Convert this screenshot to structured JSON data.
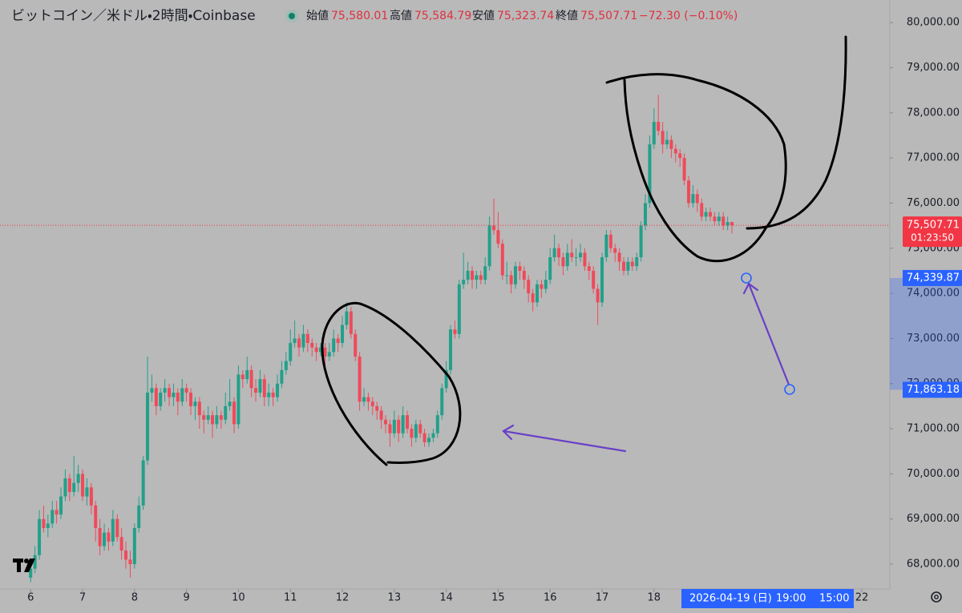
{
  "chart_data": {
    "type": "candlestick",
    "title": "ビットコイン／米ドル・2時間・Coinbase",
    "ohlc_labels": [
      "始値",
      "高値",
      "安値",
      "終値"
    ],
    "ohlc_values": [
      "75,580.01",
      "75,584.79",
      "75,323.74",
      "75,507.71"
    ],
    "change": "−72.30 (−0.10%)",
    "up_color": "#22a08a",
    "down_color": "#ef4a5a",
    "grid": false,
    "xlim": [
      5.41,
      22.54
    ],
    "xticks": [
      6,
      7,
      8,
      9,
      10,
      11,
      12,
      13,
      14,
      15,
      16,
      17,
      18,
      22
    ],
    "ylim": [
      67450,
      80500
    ],
    "yticks": [
      {
        "value": 68000,
        "label": "68,000.00"
      },
      {
        "value": 69000,
        "label": "69,000.00"
      },
      {
        "value": 70000,
        "label": "70,000.00"
      },
      {
        "value": 71000,
        "label": "71,000.00"
      },
      {
        "value": 72000,
        "label": "72,000.00"
      },
      {
        "value": 73000,
        "label": "73,000.00"
      },
      {
        "value": 74000,
        "label": "74,000.00"
      },
      {
        "value": 75000,
        "label": "75,000.00"
      },
      {
        "value": 76000,
        "label": "76,000.00"
      },
      {
        "value": 77000,
        "label": "77,000.00"
      },
      {
        "value": 78000,
        "label": "78,000.00"
      },
      {
        "value": 79000,
        "label": "79,000.00"
      },
      {
        "value": 80000,
        "label": "80,000.00"
      }
    ],
    "last_price": {
      "value": 75507.71,
      "label": "75,507.71",
      "countdown": "01:23:50",
      "color": "#f23645"
    },
    "range_markers": [
      {
        "value": 74339.87,
        "label": "74,339.87"
      },
      {
        "value": 71863.18,
        "label": "71,863.18"
      }
    ],
    "range_color": "#2962ff",
    "x_axis_highlight": {
      "date": "2026-04-19 (日)",
      "times": [
        "19:00",
        "15:00"
      ]
    },
    "x": [
      6,
      6.083,
      6.167,
      6.25,
      6.333,
      6.417,
      6.5,
      6.583,
      6.667,
      6.75,
      6.833,
      6.917,
      7,
      7.083,
      7.167,
      7.25,
      7.333,
      7.417,
      7.5,
      7.583,
      7.667,
      7.75,
      7.833,
      7.917,
      8,
      8.083,
      8.167,
      8.25,
      8.333,
      8.417,
      8.5,
      8.583,
      8.667,
      8.75,
      8.833,
      8.917,
      9,
      9.083,
      9.167,
      9.25,
      9.333,
      9.417,
      9.5,
      9.583,
      9.667,
      9.75,
      9.833,
      9.917,
      10,
      10.083,
      10.167,
      10.25,
      10.333,
      10.417,
      10.5,
      10.583,
      10.667,
      10.75,
      10.833,
      10.917,
      11,
      11.083,
      11.167,
      11.25,
      11.333,
      11.417,
      11.5,
      11.583,
      11.667,
      11.75,
      11.833,
      11.917,
      12,
      12.083,
      12.167,
      12.25,
      12.333,
      12.417,
      12.5,
      12.583,
      12.667,
      12.75,
      12.833,
      12.917,
      13,
      13.083,
      13.167,
      13.25,
      13.333,
      13.417,
      13.5,
      13.583,
      13.667,
      13.75,
      13.833,
      13.917,
      14,
      14.083,
      14.167,
      14.25,
      14.333,
      14.417,
      14.5,
      14.583,
      14.667,
      14.75,
      14.833,
      14.917,
      15,
      15.083,
      15.167,
      15.25,
      15.333,
      15.417,
      15.5,
      15.583,
      15.667,
      15.75,
      15.833,
      15.917,
      16,
      16.083,
      16.167,
      16.25,
      16.333,
      16.417,
      16.5,
      16.583,
      16.667,
      16.75,
      16.833,
      16.917,
      17,
      17.083,
      17.167,
      17.25,
      17.333,
      17.417,
      17.5,
      17.583,
      17.667,
      17.75,
      17.833,
      17.917,
      18,
      18.083,
      18.167,
      18.25,
      18.333,
      18.417,
      18.5,
      18.583,
      18.667,
      18.75,
      18.833,
      18.917,
      19,
      19.083,
      19.167,
      19.25,
      19.333,
      19.417,
      19.5
    ],
    "ohlc": [
      [
        67700,
        68100,
        67600,
        67900
      ],
      [
        67900,
        68400,
        67800,
        68200
      ],
      [
        68200,
        69200,
        68100,
        69000
      ],
      [
        69000,
        69300,
        68700,
        68800
      ],
      [
        68800,
        69100,
        68600,
        68900
      ],
      [
        68900,
        69400,
        68800,
        69200
      ],
      [
        69200,
        69400,
        68900,
        69100
      ],
      [
        69100,
        69700,
        69000,
        69500
      ],
      [
        69500,
        70100,
        69400,
        69900
      ],
      [
        69900,
        70000,
        69400,
        69600
      ],
      [
        69600,
        70400,
        69500,
        69800
      ],
      [
        69800,
        70200,
        69600,
        70000
      ],
      [
        70000,
        70100,
        69400,
        69500
      ],
      [
        69500,
        69900,
        69300,
        69700
      ],
      [
        69700,
        69800,
        69100,
        69300
      ],
      [
        69300,
        69400,
        68500,
        68800
      ],
      [
        68800,
        69000,
        68200,
        68400
      ],
      [
        68400,
        68900,
        68300,
        68700
      ],
      [
        68700,
        68800,
        68300,
        68500
      ],
      [
        68500,
        69200,
        68400,
        69000
      ],
      [
        69000,
        69100,
        68500,
        68600
      ],
      [
        68600,
        68800,
        68100,
        68300
      ],
      [
        68300,
        68500,
        67900,
        68100
      ],
      [
        68100,
        68300,
        67700,
        68000
      ],
      [
        68000,
        68900,
        67900,
        68800
      ],
      [
        68800,
        69500,
        68700,
        69300
      ],
      [
        69300,
        70400,
        69200,
        70300
      ],
      [
        70300,
        72600,
        70200,
        71800
      ],
      [
        71800,
        72200,
        71600,
        71900
      ],
      [
        71900,
        72000,
        71300,
        71500
      ],
      [
        71500,
        71900,
        71400,
        71800
      ],
      [
        71800,
        72100,
        71600,
        71900
      ],
      [
        71900,
        72000,
        71500,
        71700
      ],
      [
        71700,
        72000,
        71500,
        71800
      ],
      [
        71800,
        71900,
        71300,
        71600
      ],
      [
        71600,
        72100,
        71500,
        71900
      ],
      [
        71900,
        72000,
        71600,
        71800
      ],
      [
        71800,
        71900,
        71300,
        71500
      ],
      [
        71500,
        71700,
        71200,
        71600
      ],
      [
        71600,
        71700,
        71000,
        71300
      ],
      [
        71300,
        71400,
        70900,
        71200
      ],
      [
        71200,
        71500,
        71100,
        71300
      ],
      [
        71300,
        71400,
        70800,
        71100
      ],
      [
        71100,
        71500,
        71000,
        71300
      ],
      [
        71300,
        71400,
        71000,
        71200
      ],
      [
        71200,
        71800,
        71100,
        71500
      ],
      [
        71500,
        72100,
        71400,
        71600
      ],
      [
        71600,
        71700,
        70900,
        71100
      ],
      [
        71100,
        72400,
        71000,
        72200
      ],
      [
        72200,
        72300,
        71900,
        72100
      ],
      [
        72100,
        72600,
        72000,
        72300
      ],
      [
        72300,
        72400,
        71700,
        71900
      ],
      [
        71900,
        72100,
        71600,
        71800
      ],
      [
        71800,
        72300,
        71700,
        72100
      ],
      [
        72100,
        72200,
        71500,
        71700
      ],
      [
        71700,
        72000,
        71500,
        71800
      ],
      [
        71800,
        71900,
        71500,
        71700
      ],
      [
        71700,
        72200,
        71600,
        72000
      ],
      [
        72000,
        72500,
        71900,
        72300
      ],
      [
        72300,
        72700,
        72200,
        72500
      ],
      [
        72500,
        73200,
        72400,
        72900
      ],
      [
        72900,
        73400,
        72800,
        73000
      ],
      [
        73000,
        73100,
        72600,
        72800
      ],
      [
        72800,
        73300,
        72700,
        73100
      ],
      [
        73100,
        73200,
        72700,
        72900
      ],
      [
        72900,
        73000,
        72600,
        72800
      ],
      [
        72800,
        72900,
        72500,
        72700
      ],
      [
        72700,
        72900,
        72600,
        72800
      ],
      [
        72800,
        72900,
        72400,
        72600
      ],
      [
        72600,
        72900,
        72500,
        72700
      ],
      [
        72700,
        73200,
        72600,
        73000
      ],
      [
        73000,
        73100,
        72700,
        72900
      ],
      [
        72900,
        73500,
        72800,
        73300
      ],
      [
        73300,
        73800,
        73200,
        73600
      ],
      [
        73600,
        73700,
        73000,
        73100
      ],
      [
        73100,
        73200,
        72500,
        72600
      ],
      [
        72600,
        72700,
        71400,
        71600
      ],
      [
        71600,
        71900,
        71500,
        71700
      ],
      [
        71700,
        71800,
        71400,
        71600
      ],
      [
        71600,
        71700,
        71300,
        71500
      ],
      [
        71500,
        71600,
        71200,
        71400
      ],
      [
        71400,
        71500,
        71000,
        71200
      ],
      [
        71200,
        71300,
        70900,
        71100
      ],
      [
        71100,
        71200,
        70600,
        70900
      ],
      [
        70900,
        71400,
        70800,
        71200
      ],
      [
        71200,
        71300,
        70700,
        70900
      ],
      [
        70900,
        71500,
        70800,
        71300
      ],
      [
        71300,
        71400,
        70900,
        71000
      ],
      [
        71000,
        71100,
        70600,
        70800
      ],
      [
        70800,
        71200,
        70700,
        71100
      ],
      [
        71100,
        71200,
        70800,
        70900
      ],
      [
        70900,
        71000,
        70600,
        70700
      ],
      [
        70700,
        70900,
        70600,
        70800
      ],
      [
        70800,
        71000,
        70700,
        70900
      ],
      [
        70900,
        71400,
        70800,
        71300
      ],
      [
        71300,
        72000,
        71200,
        71900
      ],
      [
        71900,
        72500,
        71800,
        72300
      ],
      [
        72300,
        73300,
        72200,
        73200
      ],
      [
        73200,
        73400,
        73000,
        73100
      ],
      [
        73100,
        74300,
        73000,
        74200
      ],
      [
        74200,
        74900,
        74100,
        74300
      ],
      [
        74300,
        74700,
        74200,
        74500
      ],
      [
        74500,
        74600,
        74100,
        74300
      ],
      [
        74300,
        74500,
        74100,
        74400
      ],
      [
        74400,
        74500,
        74200,
        74300
      ],
      [
        74300,
        74800,
        74200,
        74600
      ],
      [
        74600,
        75700,
        74500,
        75500
      ],
      [
        75500,
        76100,
        75300,
        75400
      ],
      [
        75400,
        75800,
        75000,
        75100
      ],
      [
        75100,
        75200,
        74300,
        74400
      ],
      [
        74400,
        74700,
        74200,
        74400
      ],
      [
        74400,
        74500,
        74000,
        74200
      ],
      [
        74200,
        74700,
        74100,
        74600
      ],
      [
        74600,
        74700,
        74300,
        74500
      ],
      [
        74500,
        74600,
        74100,
        74300
      ],
      [
        74300,
        74400,
        73800,
        74000
      ],
      [
        74000,
        74100,
        73600,
        73800
      ],
      [
        73800,
        74300,
        73700,
        74200
      ],
      [
        74200,
        74300,
        73900,
        74100
      ],
      [
        74100,
        74500,
        74000,
        74300
      ],
      [
        74300,
        75000,
        74200,
        74800
      ],
      [
        74800,
        75300,
        74700,
        75000
      ],
      [
        75000,
        75100,
        74600,
        74800
      ],
      [
        74800,
        74900,
        74400,
        74600
      ],
      [
        74600,
        75100,
        74500,
        74900
      ],
      [
        74900,
        75200,
        74700,
        74800
      ],
      [
        74800,
        75000,
        74600,
        74800
      ],
      [
        74800,
        75100,
        74700,
        74900
      ],
      [
        74900,
        75000,
        74500,
        74600
      ],
      [
        74600,
        74700,
        74300,
        74500
      ],
      [
        74500,
        74600,
        74000,
        74100
      ],
      [
        74100,
        74200,
        73300,
        73800
      ],
      [
        73800,
        74900,
        73700,
        74800
      ],
      [
        74800,
        75400,
        74700,
        75300
      ],
      [
        75300,
        75400,
        74900,
        75000
      ],
      [
        75000,
        75100,
        74700,
        74900
      ],
      [
        74900,
        75000,
        74500,
        74700
      ],
      [
        74700,
        74800,
        74400,
        74500
      ],
      [
        74500,
        74800,
        74400,
        74700
      ],
      [
        74700,
        74800,
        74500,
        74600
      ],
      [
        74600,
        74900,
        74500,
        74800
      ],
      [
        74800,
        75600,
        74700,
        75500
      ],
      [
        75500,
        76200,
        75400,
        76000
      ],
      [
        76000,
        77500,
        75900,
        77300
      ],
      [
        77300,
        78100,
        77200,
        77800
      ],
      [
        77800,
        78400,
        77500,
        77600
      ],
      [
        77600,
        77800,
        77100,
        77300
      ],
      [
        77300,
        77600,
        77200,
        77400
      ],
      [
        77400,
        77500,
        77000,
        77200
      ],
      [
        77200,
        77300,
        76900,
        77100
      ],
      [
        77100,
        77200,
        76800,
        77000
      ],
      [
        77000,
        77100,
        76400,
        76500
      ],
      [
        76500,
        76600,
        75900,
        76000
      ],
      [
        76000,
        76400,
        75900,
        76200
      ],
      [
        76200,
        76300,
        75800,
        76000
      ],
      [
        76000,
        76100,
        75600,
        75700
      ],
      [
        75700,
        75900,
        75600,
        75800
      ],
      [
        75800,
        75900,
        75600,
        75700
      ],
      [
        75700,
        75800,
        75500,
        75600
      ],
      [
        75600,
        75800,
        75500,
        75700
      ],
      [
        75700,
        75800,
        75400,
        75500
      ],
      [
        75500,
        75700,
        75400,
        75580
      ],
      [
        75580.01,
        75584.79,
        75323.74,
        75507.71
      ]
    ]
  }
}
